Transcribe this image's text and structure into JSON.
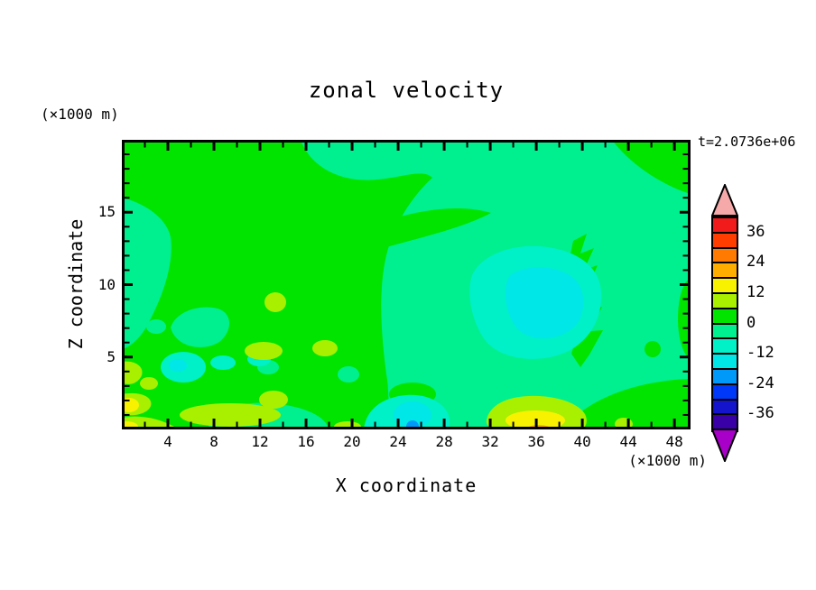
{
  "title": "zonal velocity",
  "time_label": "t=2.0736e+06",
  "axes": {
    "x_label": "X coordinate",
    "x_unit": "(×1000 m)",
    "y_label": "Z coordinate",
    "y_unit": "(×1000 m)",
    "x_tick_values": [
      4,
      8,
      12,
      16,
      20,
      24,
      28,
      32,
      36,
      40,
      44,
      48
    ],
    "x_minor_values": [
      2,
      6,
      10,
      14,
      18,
      22,
      26,
      30,
      34,
      38,
      42,
      46
    ],
    "y_tick_values": [
      15,
      10,
      5
    ],
    "y_minor_values": [
      1,
      2,
      3,
      4,
      6,
      7,
      8,
      9,
      11,
      12,
      13,
      14,
      16,
      17,
      18,
      19
    ],
    "x_max": 49.4,
    "y_max": 20
  },
  "colorbar": {
    "tick_labels": [
      "36",
      "24",
      "12",
      "0",
      "-12",
      "-24",
      "-36"
    ],
    "segment_order": [
      "b36_42",
      "b30_36",
      "b24_30",
      "b18_24",
      "b12_18",
      "b6_12",
      "b0_6",
      "bm6_0",
      "bm12_m6",
      "bm18_m12",
      "bm24_m18",
      "bm30_m24",
      "bm36_m30",
      "bm42_m36"
    ],
    "over_arrow_color": "#F5A9A9",
    "under_arrow_color": "#A800C8"
  },
  "chart_data": {
    "type": "heatmap",
    "subtype": "filled-contour",
    "title": "zonal velocity",
    "xlabel": "X coordinate (×1000 m)",
    "ylabel": "Z coordinate (×1000 m)",
    "xlim": [
      0,
      49.4
    ],
    "ylim": [
      0,
      20
    ],
    "grid": false,
    "legend_position": "right-colorbar",
    "time_annotation": "t=2.0736e+06",
    "contour_levels": [
      -42,
      -36,
      -30,
      -24,
      -18,
      -12,
      -6,
      0,
      6,
      12,
      18,
      24,
      30,
      36,
      42
    ],
    "colorbar_labeled_levels": [
      36,
      24,
      12,
      0,
      -12,
      -24,
      -36
    ],
    "palette": {
      "b36_42": "#F21B1B",
      "b30_36": "#FF3D00",
      "b24_30": "#FF7A00",
      "b18_24": "#FFAE00",
      "b12_18": "#F8F200",
      "b6_12": "#A8F000",
      "b0_6": "#00E400",
      "bm6_0": "#00F08F",
      "bm12_m6": "#00F0C8",
      "bm18_m12": "#00E7E7",
      "bm24_m18": "#0099FA",
      "bm30_m24": "#0038FA",
      "bm36_m30": "#1414CD",
      "bm42_m36": "#3A00A8",
      "over": "#F5A9A9",
      "under": "#A800C8"
    },
    "field_features": [
      {
        "band": "0..6",
        "description": "dominant background: upper-left quadrant, central mass reaching x≈32 at z≈6-9, top-right corner x>43 z>16.5, jagged column x≈38-42 z≈4-13, bottom-right corner x>38 z<3.5"
      },
      {
        "band": "-6..0",
        "description": "band along top edge x≈16-43, large right-half region x≈23-49 z≈1-17, wedge on left edge z≈5.5-16, patches near bottom x≈7-18 and x≈27-34"
      },
      {
        "band": "-12..-6",
        "description": "large patch x≈30-42 z≈5-12.5, small patch x≈3.5-7 z≈2.5-5.5, patch x≈21-28.5 z≈0-2.4"
      },
      {
        "band": "-18..-12",
        "description": "lighter core x≈33.5-39 z≈6-10.5 inside large patch, spot x≈23.5-27 z≈0-1.8, spot x≈4-5.5 z≈3.8-4.8"
      },
      {
        "band": "-24..-18",
        "description": "tiny spot at bottom edge x≈25.3 z≈0.2"
      },
      {
        "band": "6..12",
        "description": "blob x≈12.5-14.3 z≈8-9.5, oval x≈10.7-14 z≈5-5.9, streaks along left edge and bottom-left corner, band x≈5-14 z<1.3, ring x≈31.7-40.3 z<2.3, spot x≈43.6 z≈0.4"
      },
      {
        "band": "12..18",
        "description": "yellow core x≈33.3-38.5 z<1.4, bottom-left corner spots near x≈0.6 z≈1.7 and x≈0.3 z≈0.2"
      },
      {
        "band": "18..24",
        "description": "small sliver on bottom edge x≈35.1-37.3"
      }
    ]
  }
}
